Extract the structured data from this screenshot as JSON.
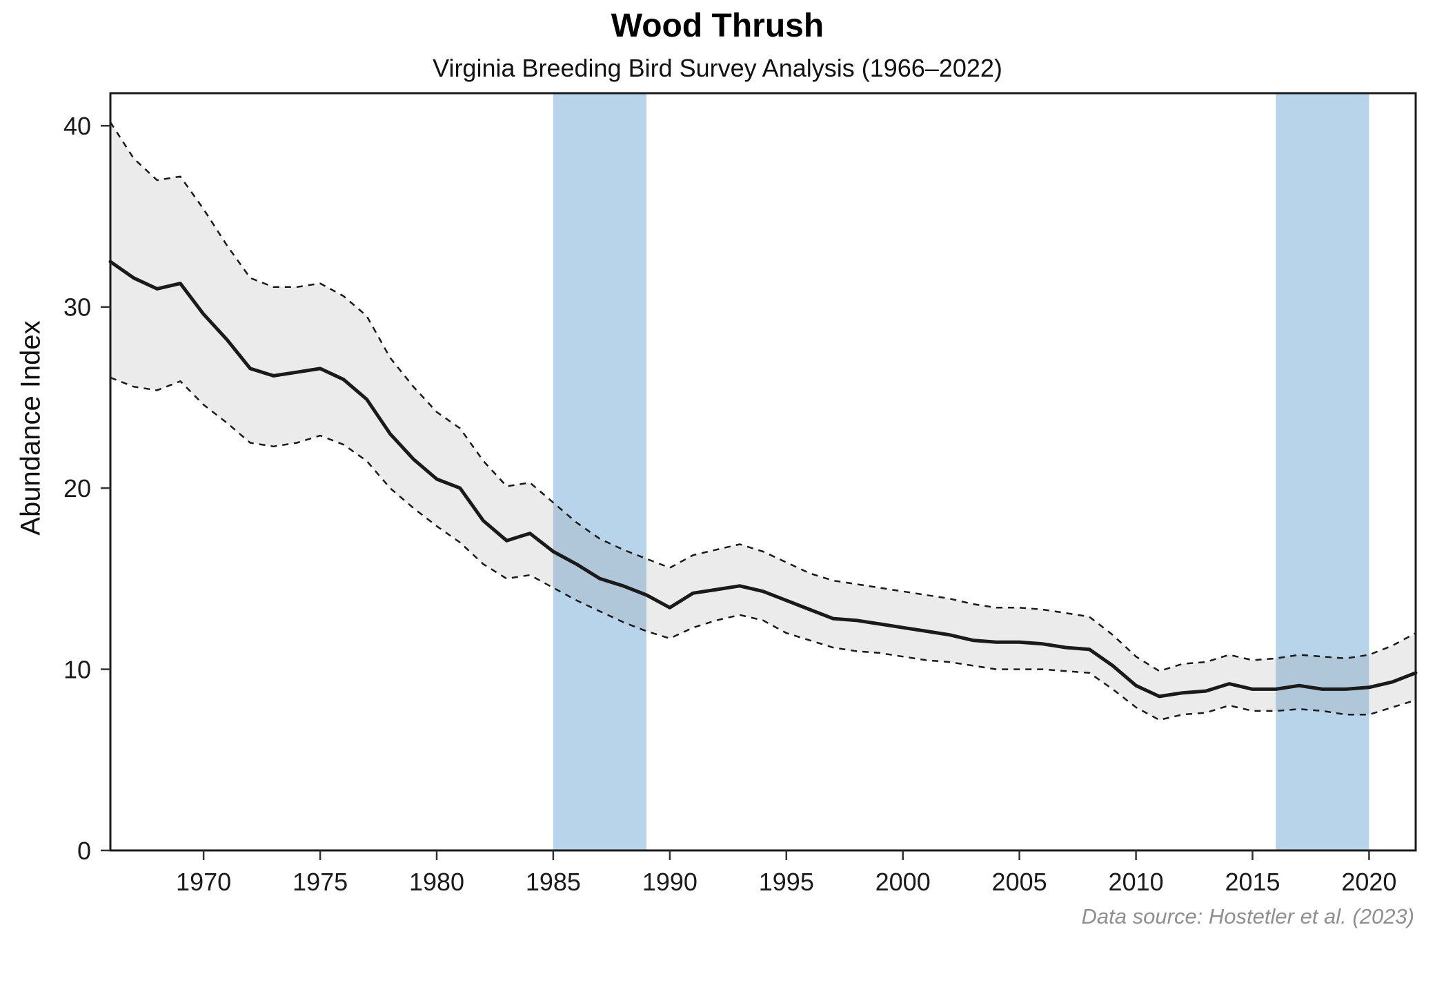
{
  "chart_data": {
    "type": "line",
    "title": "Wood Thrush",
    "subtitle": "Virginia Breeding Bird Survey Analysis (1966–2022)",
    "xlabel": "",
    "ylabel": "Abundance Index",
    "source_note": "Data source: Hostetler et al. (2023)",
    "xlim": [
      1966,
      2022
    ],
    "ylim": [
      0,
      41.8
    ],
    "x_ticks": [
      1970,
      1975,
      1980,
      1985,
      1990,
      1995,
      2000,
      2005,
      2010,
      2015,
      2020
    ],
    "y_ticks": [
      0,
      10,
      20,
      30,
      40
    ],
    "grid": false,
    "legend": "none",
    "years": [
      1966,
      1967,
      1968,
      1969,
      1970,
      1971,
      1972,
      1973,
      1974,
      1975,
      1976,
      1977,
      1978,
      1979,
      1980,
      1981,
      1982,
      1983,
      1984,
      1985,
      1986,
      1987,
      1988,
      1989,
      1990,
      1991,
      1992,
      1993,
      1994,
      1995,
      1996,
      1997,
      1998,
      1999,
      2000,
      2001,
      2002,
      2003,
      2004,
      2005,
      2006,
      2007,
      2008,
      2009,
      2010,
      2011,
      2012,
      2013,
      2014,
      2015,
      2016,
      2017,
      2018,
      2019,
      2020,
      2021,
      2022
    ],
    "series": [
      {
        "name": "Abundance Index (trend estimate)",
        "style": "solid",
        "values": [
          32.5,
          31.6,
          31.0,
          31.3,
          29.6,
          28.2,
          26.6,
          26.2,
          26.4,
          26.6,
          26.0,
          24.9,
          23.0,
          21.6,
          20.5,
          20.0,
          18.2,
          17.1,
          17.5,
          16.5,
          15.8,
          15.0,
          14.6,
          14.1,
          13.4,
          14.2,
          14.4,
          14.6,
          14.3,
          13.8,
          13.3,
          12.8,
          12.7,
          12.5,
          12.3,
          12.1,
          11.9,
          11.6,
          11.5,
          11.5,
          11.4,
          11.2,
          11.1,
          10.2,
          9.1,
          8.5,
          8.7,
          8.8,
          9.2,
          8.9,
          8.9,
          9.1,
          8.9,
          8.9,
          9.0,
          9.3,
          9.8
        ]
      },
      {
        "name": "Upper 95% CI",
        "style": "dashed",
        "values": [
          40.2,
          38.2,
          37.0,
          37.2,
          35.4,
          33.4,
          31.6,
          31.1,
          31.1,
          31.3,
          30.6,
          29.5,
          27.2,
          25.6,
          24.2,
          23.3,
          21.5,
          20.1,
          20.3,
          19.2,
          18.1,
          17.2,
          16.6,
          16.1,
          15.6,
          16.3,
          16.6,
          16.9,
          16.5,
          15.9,
          15.3,
          14.9,
          14.7,
          14.5,
          14.3,
          14.1,
          13.9,
          13.6,
          13.4,
          13.4,
          13.3,
          13.1,
          12.9,
          11.9,
          10.7,
          9.9,
          10.3,
          10.4,
          10.8,
          10.5,
          10.6,
          10.8,
          10.7,
          10.6,
          10.8,
          11.3,
          12.0
        ]
      },
      {
        "name": "Lower 95% CI",
        "style": "dashed",
        "values": [
          26.1,
          25.6,
          25.4,
          25.9,
          24.6,
          23.6,
          22.5,
          22.3,
          22.5,
          22.9,
          22.4,
          21.5,
          20.0,
          18.9,
          17.9,
          17.0,
          15.8,
          15.0,
          15.2,
          14.5,
          13.8,
          13.2,
          12.6,
          12.1,
          11.7,
          12.3,
          12.7,
          13.0,
          12.7,
          12.0,
          11.6,
          11.2,
          11.0,
          10.9,
          10.7,
          10.5,
          10.4,
          10.2,
          10.0,
          10.0,
          10.0,
          9.9,
          9.8,
          8.9,
          7.9,
          7.2,
          7.5,
          7.6,
          8.0,
          7.7,
          7.7,
          7.8,
          7.7,
          7.5,
          7.5,
          7.9,
          8.3
        ]
      }
    ],
    "highlight_regions": [
      {
        "start": 1985,
        "end": 1989
      },
      {
        "start": 2016,
        "end": 2020
      }
    ],
    "colors": {
      "line": "#1a1a1a",
      "ci_fill": "#808080",
      "highlight": "#b8d4ea",
      "tick": "#333333",
      "source_text": "#8f8f8f"
    }
  }
}
